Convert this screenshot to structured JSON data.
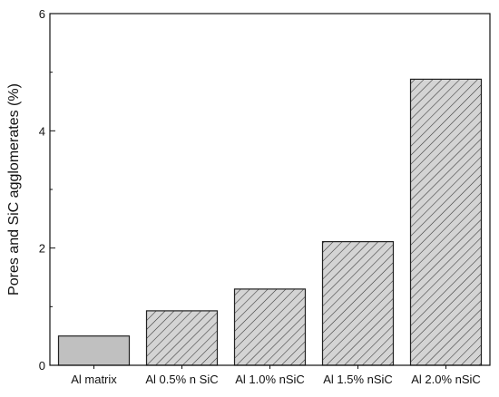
{
  "chart_data": {
    "type": "bar",
    "title": "",
    "xlabel": "",
    "ylabel": "Pores and SiC agglomerates (%)",
    "categories": [
      "Al matrix",
      "Al 0.5% n SiC",
      "Al 1.0% nSiC",
      "Al 1.5% nSiC",
      "Al 2.0% nSiC"
    ],
    "values": [
      0.5,
      0.93,
      1.3,
      2.11,
      4.88
    ],
    "ylim": [
      0,
      6
    ],
    "yticks": [
      0,
      2,
      4,
      6
    ],
    "grid": false,
    "bar_styles": [
      "solid",
      "hatched",
      "hatched",
      "hatched",
      "hatched"
    ],
    "colors": {
      "solid_fill": "#c0c0c0",
      "hatch_fill": "#d4d4d4",
      "hatch_line": "#333333",
      "bar_edge": "#222222"
    }
  }
}
